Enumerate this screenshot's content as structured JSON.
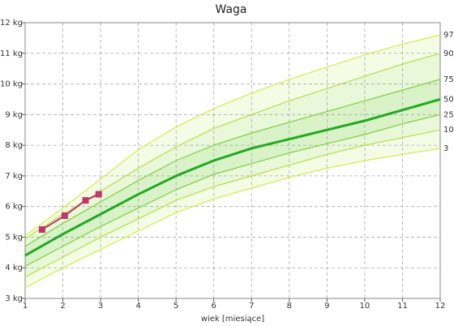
{
  "chart_data": {
    "type": "line",
    "title": "Waga",
    "x_label": "wiek [miesiące]",
    "x": [
      1,
      2,
      3,
      4,
      5,
      6,
      7,
      8,
      9,
      10,
      11,
      12
    ],
    "xlim": [
      1,
      12
    ],
    "xticks": [
      1,
      2,
      3,
      4,
      5,
      6,
      7,
      8,
      9,
      10,
      11,
      12
    ],
    "ylim": [
      3,
      12
    ],
    "yticks": [
      {
        "value": 3,
        "label": "3 kg"
      },
      {
        "value": 4,
        "label": "4 kg"
      },
      {
        "value": 5,
        "label": "5 kg"
      },
      {
        "value": 6,
        "label": "6 kg"
      },
      {
        "value": 7,
        "label": "7 kg"
      },
      {
        "value": 8,
        "label": "8 kg"
      },
      {
        "value": 9,
        "label": "9 kg"
      },
      {
        "value": 10,
        "label": "10 kg"
      },
      {
        "value": 11,
        "label": "11 kg"
      },
      {
        "value": 12,
        "label": "12 kg"
      }
    ],
    "grid": true,
    "series": [
      {
        "name": "3",
        "color": "#d8e84a",
        "values": [
          3.35,
          4.0,
          4.6,
          5.2,
          5.8,
          6.25,
          6.6,
          6.95,
          7.25,
          7.5,
          7.7,
          7.9
        ]
      },
      {
        "name": "10",
        "color": "#b4e04a",
        "values": [
          3.7,
          4.35,
          5.0,
          5.6,
          6.2,
          6.65,
          7.0,
          7.35,
          7.7,
          8.0,
          8.25,
          8.5
        ]
      },
      {
        "name": "25",
        "color": "#7fcf3f",
        "values": [
          4.05,
          4.7,
          5.35,
          5.95,
          6.55,
          7.05,
          7.4,
          7.75,
          8.05,
          8.35,
          8.7,
          9.0
        ]
      },
      {
        "name": "50",
        "color": "#22aa22",
        "values": [
          4.4,
          5.1,
          5.75,
          6.4,
          7.0,
          7.5,
          7.9,
          8.2,
          8.5,
          8.8,
          9.15,
          9.5
        ]
      },
      {
        "name": "75",
        "color": "#7fcf3f",
        "values": [
          4.7,
          5.45,
          6.15,
          6.85,
          7.5,
          8.0,
          8.4,
          8.75,
          9.1,
          9.45,
          9.8,
          10.15
        ]
      },
      {
        "name": "90",
        "color": "#b4e04a",
        "values": [
          4.95,
          5.75,
          6.5,
          7.25,
          7.95,
          8.55,
          9.0,
          9.45,
          9.85,
          10.25,
          10.65,
          11.0
        ]
      },
      {
        "name": "97",
        "color": "#d8e84a",
        "values": [
          5.05,
          5.95,
          6.9,
          7.85,
          8.6,
          9.2,
          9.7,
          10.15,
          10.55,
          10.95,
          11.3,
          11.6
        ]
      }
    ],
    "measurements": {
      "color": "#c0386b",
      "x": [
        1.45,
        2.05,
        2.6,
        2.95
      ],
      "values": [
        5.25,
        5.7,
        6.2,
        6.4
      ]
    }
  }
}
